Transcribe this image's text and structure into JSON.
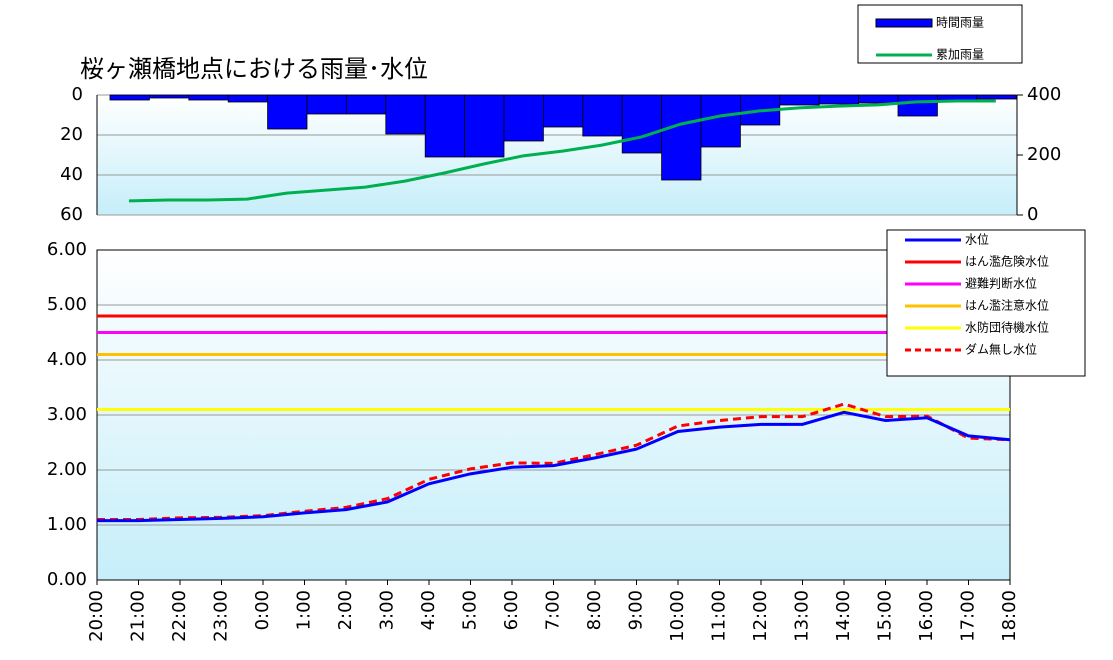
{
  "chart_data": [
    {
      "type": "bar",
      "title": "桜ヶ瀬橋地点における雨量･水位",
      "ylim": [
        0,
        60
      ],
      "yticks": [
        0,
        20,
        40,
        60
      ],
      "y_inverted": true,
      "y2lim": [
        0,
        400
      ],
      "y2ticks": [
        0,
        200,
        400
      ],
      "grid": true,
      "legend": "top-right",
      "series": [
        {
          "name": "時間雨量",
          "color": "#0000ff",
          "values": [
            2.5,
            1.5,
            2.5,
            3.5,
            17,
            9.5,
            9.5,
            19.5,
            31,
            31,
            23,
            16,
            20.5,
            29,
            42.5,
            26,
            15,
            5,
            4.5,
            4,
            10.5,
            2.5,
            2
          ]
        },
        {
          "name": "累加雨量",
          "color": "#00b050",
          "axis": "y2",
          "values": [
            47,
            50,
            50,
            53,
            73,
            83,
            93,
            113,
            140,
            170,
            197,
            213,
            233,
            260,
            303,
            330,
            347,
            357,
            363,
            367,
            377,
            380,
            380
          ]
        }
      ]
    },
    {
      "type": "line",
      "categories": [
        "20:00",
        "21:00",
        "22:00",
        "23:00",
        "0:00",
        "1:00",
        "2:00",
        "3:00",
        "4:00",
        "5:00",
        "6:00",
        "7:00",
        "8:00",
        "9:00",
        "10:00",
        "11:00",
        "12:00",
        "13:00",
        "14:00",
        "15:00",
        "16:00",
        "17:00",
        "18:00"
      ],
      "ylim": [
        0,
        6
      ],
      "yticks": [
        {
          "value": 0,
          "label": "0.00"
        },
        {
          "value": 1,
          "label": "1.00"
        },
        {
          "value": 2,
          "label": "2.00"
        },
        {
          "value": 3,
          "label": "3.00"
        },
        {
          "value": 4,
          "label": "4.00"
        },
        {
          "value": 5,
          "label": "5.00"
        },
        {
          "value": 6,
          "label": "6.00"
        }
      ],
      "grid": true,
      "legend": "top-right",
      "series": [
        {
          "name": "水位",
          "color": "#0000ff",
          "values": [
            1.08,
            1.08,
            1.1,
            1.12,
            1.15,
            1.22,
            1.28,
            1.42,
            1.75,
            1.93,
            2.05,
            2.08,
            2.22,
            2.38,
            2.7,
            2.78,
            2.83,
            2.83,
            3.05,
            2.9,
            2.95,
            2.62,
            2.55
          ]
        },
        {
          "name": "はん濫危険水位",
          "color": "#ff0000",
          "values": [
            4.8,
            4.8,
            4.8,
            4.8,
            4.8,
            4.8,
            4.8,
            4.8,
            4.8,
            4.8,
            4.8,
            4.8,
            4.8,
            4.8,
            4.8,
            4.8,
            4.8,
            4.8,
            4.8,
            4.8,
            4.8,
            4.8,
            4.8
          ]
        },
        {
          "name": "避難判断水位",
          "color": "#ff00ff",
          "values": [
            4.5,
            4.5,
            4.5,
            4.5,
            4.5,
            4.5,
            4.5,
            4.5,
            4.5,
            4.5,
            4.5,
            4.5,
            4.5,
            4.5,
            4.5,
            4.5,
            4.5,
            4.5,
            4.5,
            4.5,
            4.5,
            4.5,
            4.5
          ]
        },
        {
          "name": "はん濫注意水位",
          "color": "#ffc000",
          "values": [
            4.1,
            4.1,
            4.1,
            4.1,
            4.1,
            4.1,
            4.1,
            4.1,
            4.1,
            4.1,
            4.1,
            4.1,
            4.1,
            4.1,
            4.1,
            4.1,
            4.1,
            4.1,
            4.1,
            4.1,
            4.1,
            4.1,
            4.1
          ]
        },
        {
          "name": "水防団待機水位",
          "color": "#ffff00",
          "values": [
            3.1,
            3.1,
            3.1,
            3.1,
            3.1,
            3.1,
            3.1,
            3.1,
            3.1,
            3.1,
            3.1,
            3.1,
            3.1,
            3.1,
            3.1,
            3.1,
            3.1,
            3.1,
            3.1,
            3.1,
            3.1,
            3.1,
            3.1
          ]
        },
        {
          "name": "ダム無し水位",
          "color": "#ff0000",
          "dashed": true,
          "values": [
            1.1,
            1.1,
            1.13,
            1.14,
            1.17,
            1.25,
            1.32,
            1.48,
            1.83,
            2.02,
            2.13,
            2.12,
            2.28,
            2.45,
            2.8,
            2.9,
            2.97,
            2.97,
            3.2,
            2.97,
            2.98,
            2.58,
            2.55
          ]
        }
      ]
    }
  ]
}
